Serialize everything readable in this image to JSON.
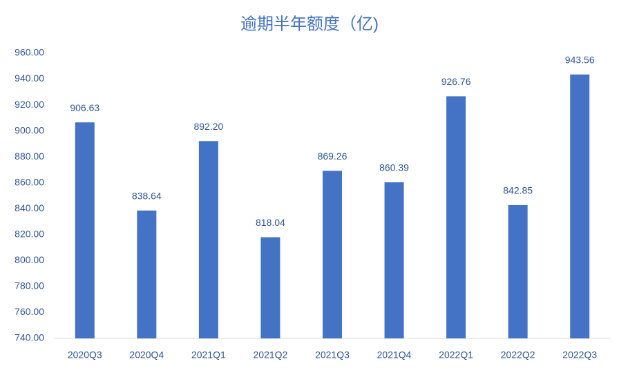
{
  "chart_data": {
    "type": "bar",
    "title": "逾期半年额度（亿)",
    "categories": [
      "2020Q3",
      "2020Q4",
      "2021Q1",
      "2021Q2",
      "2021Q3",
      "2021Q4",
      "2022Q1",
      "2022Q2",
      "2022Q3"
    ],
    "values": [
      906.63,
      838.64,
      892.2,
      818.04,
      869.26,
      860.39,
      926.76,
      842.85,
      943.56
    ],
    "value_labels": [
      "906.63",
      "838.64",
      "892.20",
      "818.04",
      "869.26",
      "860.39",
      "926.76",
      "842.85",
      "943.56"
    ],
    "color": "#4472c4",
    "ylim": [
      740,
      960
    ],
    "yticks": [
      {
        "value": 740,
        "label": "740.00"
      },
      {
        "value": 760,
        "label": "760.00"
      },
      {
        "value": 780,
        "label": "780.00"
      },
      {
        "value": 800,
        "label": "800.00"
      },
      {
        "value": 820,
        "label": "820.00"
      },
      {
        "value": 840,
        "label": "840.00"
      },
      {
        "value": 860,
        "label": "860.00"
      },
      {
        "value": 880,
        "label": "880.00"
      },
      {
        "value": 900,
        "label": "900.00"
      },
      {
        "value": 920,
        "label": "920.00"
      },
      {
        "value": 940,
        "label": "940.00"
      },
      {
        "value": 960,
        "label": "960.00"
      }
    ],
    "grid": false
  }
}
